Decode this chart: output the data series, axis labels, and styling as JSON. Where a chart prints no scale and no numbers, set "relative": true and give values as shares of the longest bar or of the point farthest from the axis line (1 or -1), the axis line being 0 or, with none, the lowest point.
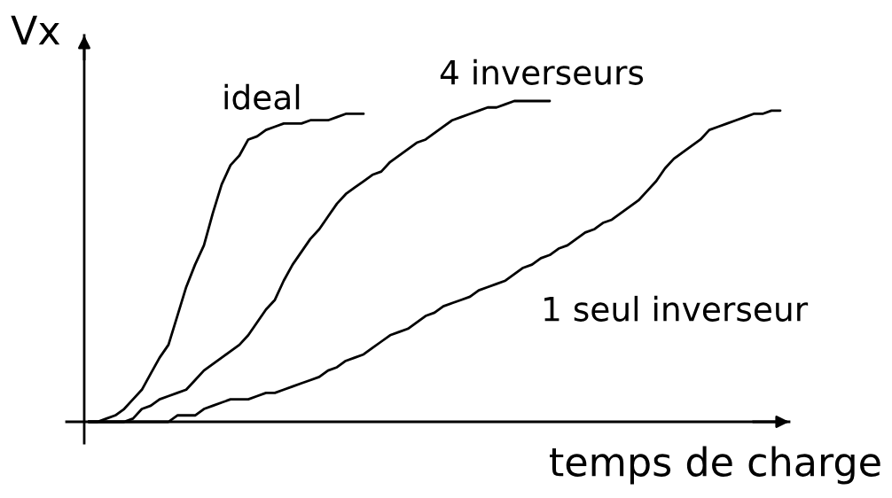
{
  "chart_data": {
    "type": "line",
    "relative": true,
    "xlabel": "temps de charge",
    "ylabel": "Vx",
    "legend": false,
    "line_style": "solid",
    "categories": [
      null,
      null,
      null,
      null,
      null,
      null,
      null,
      null,
      null,
      null,
      null,
      null,
      null,
      null,
      null,
      null,
      null,
      null,
      null,
      null,
      null,
      null,
      null,
      null,
      null,
      null,
      null,
      null,
      null,
      null,
      null,
      null,
      null,
      null,
      null,
      null,
      null,
      null,
      null,
      null,
      null,
      null,
      null,
      null,
      null,
      null,
      null,
      null,
      null,
      null,
      null,
      null,
      null,
      null,
      null,
      null,
      null,
      null,
      null,
      null,
      null,
      null,
      null,
      null,
      null,
      null,
      null,
      null,
      null,
      null,
      null,
      null,
      null,
      null,
      null,
      null,
      null,
      null,
      null
    ],
    "series": [
      {
        "name": "ideal",
        "color": "#000000",
        "values": [
          0,
          0,
          0.01,
          0.02,
          0.04,
          0.07,
          0.1,
          0.15,
          0.2,
          0.24,
          0.33,
          0.42,
          0.49,
          0.55,
          0.65,
          0.74,
          0.8,
          0.83,
          0.88,
          0.89,
          0.91,
          0.92,
          0.93,
          0.93,
          0.93,
          0.94,
          0.94,
          0.94,
          0.95,
          0.96,
          0.96,
          0.96,
          null,
          null,
          null,
          null,
          null,
          null,
          null,
          null,
          null,
          null,
          null,
          null,
          null,
          null,
          null,
          null,
          null,
          null,
          null,
          null,
          null,
          null,
          null,
          null,
          null,
          null,
          null,
          null,
          null,
          null,
          null,
          null,
          null,
          null,
          null,
          null,
          null,
          null,
          null,
          null,
          null,
          null,
          null,
          null,
          null,
          null,
          null
        ]
      },
      {
        "name": "4 inverseurs",
        "color": "#000000",
        "values": [
          0,
          0,
          0,
          0,
          0,
          0.01,
          0.04,
          0.05,
          0.07,
          0.08,
          0.09,
          0.1,
          0.13,
          0.16,
          0.18,
          0.2,
          0.22,
          0.24,
          0.27,
          0.31,
          0.35,
          0.38,
          0.44,
          0.49,
          0.53,
          0.57,
          0.6,
          0.64,
          0.68,
          0.71,
          0.73,
          0.75,
          0.77,
          0.78,
          0.81,
          0.83,
          0.85,
          0.87,
          0.88,
          0.9,
          0.92,
          0.94,
          0.95,
          0.96,
          0.97,
          0.98,
          0.98,
          0.99,
          1,
          1,
          1,
          1,
          1,
          null,
          null,
          null,
          null,
          null,
          null,
          null,
          null,
          null,
          null,
          null,
          null,
          null,
          null,
          null,
          null,
          null,
          null,
          null,
          null,
          null,
          null,
          null,
          null,
          null,
          null
        ]
      },
      {
        "name": "1 seul inverseur",
        "color": "#000000",
        "values": [
          0,
          0,
          0,
          0,
          0,
          0,
          0,
          0,
          0,
          0,
          0.02,
          0.02,
          0.02,
          0.04,
          0.05,
          0.06,
          0.07,
          0.07,
          0.07,
          0.08,
          0.09,
          0.09,
          0.1,
          0.11,
          0.12,
          0.13,
          0.14,
          0.16,
          0.17,
          0.19,
          0.2,
          0.21,
          0.23,
          0.25,
          0.27,
          0.28,
          0.29,
          0.31,
          0.33,
          0.34,
          0.36,
          0.37,
          0.38,
          0.39,
          0.41,
          0.42,
          0.43,
          0.44,
          0.46,
          0.48,
          0.49,
          0.51,
          0.52,
          0.54,
          0.55,
          0.57,
          0.59,
          0.6,
          0.62,
          0.63,
          0.65,
          0.67,
          0.69,
          0.72,
          0.75,
          0.79,
          0.82,
          0.84,
          0.86,
          0.88,
          0.91,
          0.92,
          0.93,
          0.94,
          0.95,
          0.96,
          0.96,
          0.97,
          0.97
        ]
      }
    ]
  }
}
